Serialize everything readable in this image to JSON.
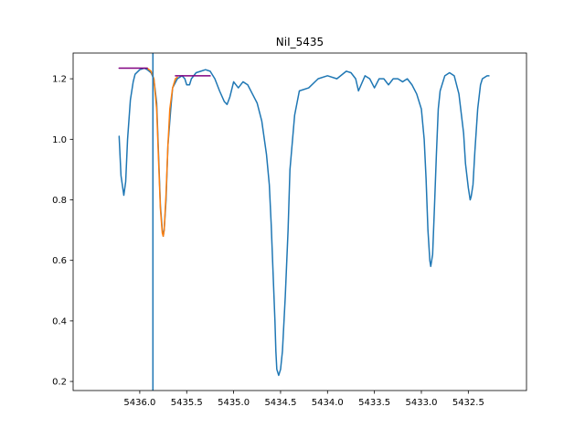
{
  "chart_data": {
    "type": "line",
    "title": "NiI_5435",
    "xlabel": "",
    "ylabel": "",
    "x_inverted": true,
    "xlim": [
      5436.71,
      5431.88
    ],
    "ylim": [
      0.17,
      1.285
    ],
    "grid": false,
    "x_ticks": [
      {
        "value": 5436.0,
        "label": "5436.0"
      },
      {
        "value": 5435.5,
        "label": "5435.5"
      },
      {
        "value": 5435.0,
        "label": "5435.0"
      },
      {
        "value": 5434.5,
        "label": "5434.5"
      },
      {
        "value": 5434.0,
        "label": "5434.0"
      },
      {
        "value": 5433.5,
        "label": "5433.5"
      },
      {
        "value": 5433.0,
        "label": "5433.0"
      },
      {
        "value": 5432.5,
        "label": "5432.5"
      }
    ],
    "y_ticks": [
      {
        "value": 0.2,
        "label": "0.2"
      },
      {
        "value": 0.4,
        "label": "0.4"
      },
      {
        "value": 0.6,
        "label": "0.6"
      },
      {
        "value": 0.8,
        "label": "0.8"
      },
      {
        "value": 1.0,
        "label": "1.0"
      },
      {
        "value": 1.2,
        "label": "1.2"
      }
    ],
    "colors": {
      "spectrum": "#1f77b4",
      "fit": "#ff7f0e",
      "continuum": "#800080",
      "marker": "#1f77b4"
    },
    "series": [
      {
        "color": "#1f77b4",
        "x": [
          5436.22,
          5436.2,
          5436.17,
          5436.15,
          5436.13,
          5436.1,
          5436.07,
          5436.05,
          5436.0,
          5435.95,
          5435.92,
          5435.88,
          5435.85,
          5435.82,
          5435.8,
          5435.78,
          5435.76,
          5435.75,
          5435.74,
          5435.72,
          5435.7,
          5435.67,
          5435.65,
          5435.6,
          5435.55,
          5435.52,
          5435.5,
          5435.47,
          5435.45,
          5435.4,
          5435.35,
          5435.3,
          5435.25,
          5435.2,
          5435.15,
          5435.1,
          5435.07,
          5435.04,
          5435.0,
          5434.95,
          5434.9,
          5434.85,
          5434.8,
          5434.75,
          5434.7,
          5434.65,
          5434.62,
          5434.6,
          5434.58,
          5434.56,
          5434.55,
          5434.54,
          5434.52,
          5434.5,
          5434.48,
          5434.45,
          5434.42,
          5434.4,
          5434.35,
          5434.3,
          5434.2,
          5434.1,
          5434.0,
          5433.9,
          5433.8,
          5433.75,
          5433.7,
          5433.67,
          5433.6,
          5433.55,
          5433.5,
          5433.45,
          5433.4,
          5433.35,
          5433.3,
          5433.25,
          5433.2,
          5433.15,
          5433.1,
          5433.05,
          5433.0,
          5432.97,
          5432.95,
          5432.93,
          5432.91,
          5432.9,
          5432.88,
          5432.86,
          5432.84,
          5432.82,
          5432.8,
          5432.75,
          5432.7,
          5432.65,
          5432.6,
          5432.55,
          5432.53,
          5432.5,
          5432.48,
          5432.47,
          5432.45,
          5432.43,
          5432.4,
          5432.37,
          5432.35,
          5432.3,
          5432.28
        ],
        "y": [
          1.01,
          0.88,
          0.815,
          0.86,
          1.0,
          1.13,
          1.19,
          1.215,
          1.23,
          1.235,
          1.23,
          1.22,
          1.2,
          1.12,
          0.95,
          0.78,
          0.7,
          0.68,
          0.7,
          0.8,
          0.98,
          1.1,
          1.17,
          1.2,
          1.21,
          1.2,
          1.18,
          1.18,
          1.2,
          1.22,
          1.225,
          1.23,
          1.225,
          1.2,
          1.16,
          1.125,
          1.115,
          1.14,
          1.19,
          1.17,
          1.19,
          1.18,
          1.15,
          1.12,
          1.06,
          0.95,
          0.85,
          0.72,
          0.56,
          0.4,
          0.3,
          0.24,
          0.22,
          0.24,
          0.3,
          0.48,
          0.7,
          0.9,
          1.08,
          1.16,
          1.17,
          1.2,
          1.21,
          1.2,
          1.225,
          1.22,
          1.2,
          1.16,
          1.21,
          1.2,
          1.17,
          1.2,
          1.2,
          1.18,
          1.2,
          1.2,
          1.19,
          1.2,
          1.18,
          1.15,
          1.1,
          1.0,
          0.87,
          0.7,
          0.6,
          0.58,
          0.62,
          0.78,
          0.95,
          1.1,
          1.16,
          1.21,
          1.22,
          1.21,
          1.15,
          1.02,
          0.92,
          0.84,
          0.8,
          0.81,
          0.85,
          0.96,
          1.1,
          1.18,
          1.2,
          1.21,
          1.21
        ]
      },
      {
        "color": "#ff7f0e",
        "x": [
          5435.92,
          5435.88,
          5435.85,
          5435.82,
          5435.8,
          5435.78,
          5435.76,
          5435.75,
          5435.74,
          5435.72,
          5435.7,
          5435.68,
          5435.65,
          5435.62,
          5435.6
        ],
        "y": [
          1.235,
          1.225,
          1.2,
          1.1,
          0.93,
          0.77,
          0.69,
          0.68,
          0.7,
          0.82,
          0.98,
          1.1,
          1.17,
          1.2,
          1.205
        ]
      },
      {
        "color": "#800080",
        "x": [
          5436.22,
          5435.92
        ],
        "y": [
          1.235,
          1.235
        ]
      },
      {
        "color": "#800080",
        "x": [
          5435.62,
          5435.25
        ],
        "y": [
          1.21,
          1.21
        ]
      }
    ],
    "vline": {
      "x": 5435.86,
      "color": "#1f77b4"
    }
  }
}
